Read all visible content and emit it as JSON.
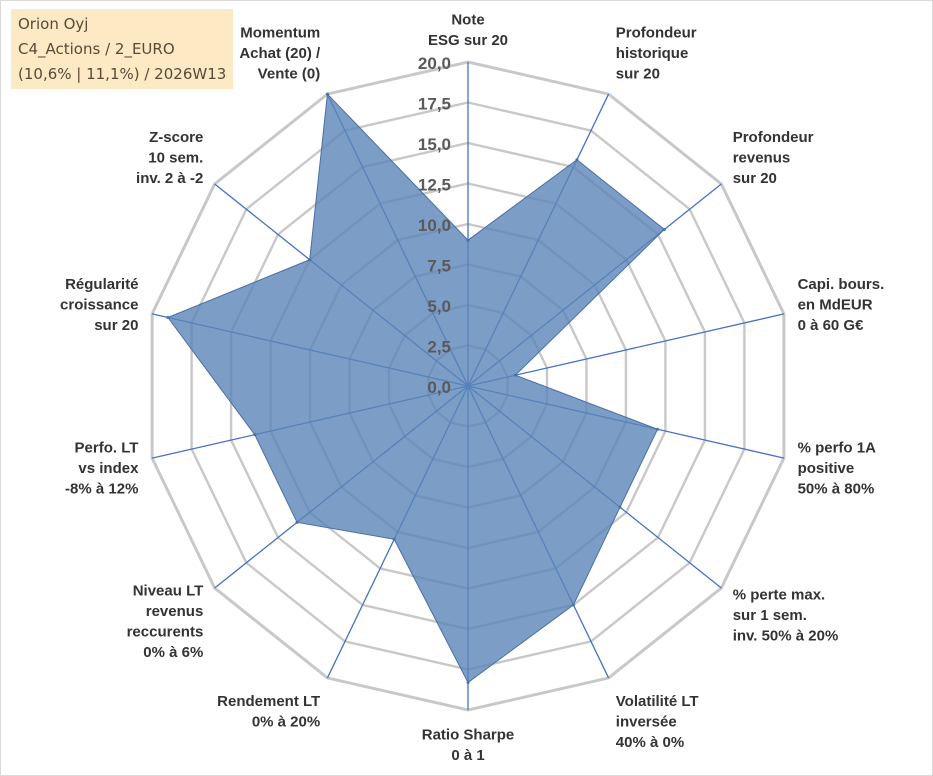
{
  "info_box": {
    "company": "Orion Oyj",
    "fund": "C4_Actions / 2_EURO",
    "stats": "(10,6% | 11,1%) / 2026W13"
  },
  "colors": {
    "background": "#ffffff",
    "grid": "#c8c8c8",
    "spoke": "#4472c4",
    "fill": "#5b84b8",
    "outline": "#4a6fa5",
    "info_bg": "#fde9c4"
  },
  "chart_data": {
    "type": "radar",
    "title": "",
    "scale": {
      "min": 0,
      "max": 20,
      "step": 2.5
    },
    "tick_labels": [
      "0,0",
      "2,5",
      "5,0",
      "7,5",
      "10,0",
      "12,5",
      "15,0",
      "17,5",
      "20,0"
    ],
    "axes": [
      [
        "Note",
        "ESG sur 20"
      ],
      [
        "Profondeur",
        "historique",
        "sur 20"
      ],
      [
        "Profondeur",
        "revenus",
        "sur 20"
      ],
      [
        "Capi. bours.",
        "en MdEUR",
        "0 à 60 G€"
      ],
      [
        "% perfo 1A",
        "positive",
        "50% à 80%"
      ],
      [
        "% perte max.",
        "sur 1 sem.",
        "inv. 50% à 20%"
      ],
      [
        "Volatilité LT",
        "inversée",
        "40% à 0%"
      ],
      [
        "Ratio Sharpe",
        "0 à 1"
      ],
      [
        "Rendement LT",
        "0% à 20%"
      ],
      [
        "Niveau LT",
        "revenus",
        "reccurents",
        "0% à 6%"
      ],
      [
        "Perfo. LT",
        "vs index",
        "-8% à 12%"
      ],
      [
        "Régularité",
        "croissance",
        "sur 20"
      ],
      [
        "Z-score",
        "10 sem.",
        "inv. 2 à -2"
      ],
      [
        "Momentum",
        "Achat (20) /",
        "Vente (0)"
      ]
    ],
    "series": [
      {
        "name": "Orion Oyj",
        "values": [
          9,
          15.5,
          15.5,
          3,
          12,
          12,
          15,
          18.3,
          10.5,
          13.5,
          13.5,
          19,
          12.5,
          20
        ]
      }
    ]
  }
}
